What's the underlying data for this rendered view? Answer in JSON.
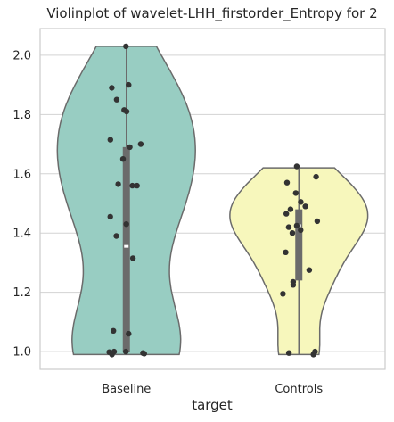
{
  "chart_data": {
    "type": "violin",
    "title": "Violinplot of wavelet-LHH_firstorder_Entropy for 2",
    "xlabel": "target",
    "ylabel": "",
    "ylim": [
      0.94,
      2.09
    ],
    "yticks": [
      "1.0",
      "1.2",
      "1.4",
      "1.6",
      "1.8",
      "2.0"
    ],
    "grid": true,
    "categories": [
      {
        "name": "Baseline",
        "color": "#98cdc2",
        "range": [
          0.99,
          2.03
        ],
        "quartiles": [
          1.0,
          1.355,
          1.69
        ],
        "points": [
          2.03,
          1.9,
          1.89,
          1.85,
          1.815,
          1.81,
          1.715,
          1.7,
          1.69,
          1.65,
          1.565,
          1.56,
          1.56,
          1.455,
          1.43,
          1.39,
          1.315,
          1.07,
          1.06,
          1.0,
          1.0,
          0.998,
          0.995,
          0.993,
          0.99
        ]
      },
      {
        "name": "Controls",
        "color": "#f7f7bc",
        "range": [
          0.99,
          1.62
        ],
        "quartiles": [
          1.24,
          1.425,
          1.48
        ],
        "points": [
          1.625,
          1.59,
          1.57,
          1.535,
          1.505,
          1.49,
          1.48,
          1.465,
          1.44,
          1.425,
          1.42,
          1.41,
          1.4,
          1.335,
          1.275,
          1.235,
          1.225,
          1.195,
          1.0,
          0.995,
          0.99
        ]
      }
    ]
  }
}
